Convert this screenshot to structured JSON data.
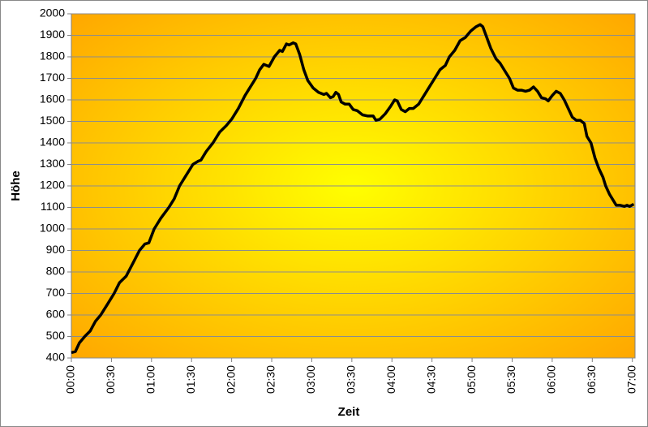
{
  "chart_data": {
    "type": "line",
    "x_label": "Zeit",
    "y_label": "Höhe",
    "x": [
      0,
      3,
      6,
      10,
      14,
      18,
      22,
      27,
      32,
      36,
      41,
      46,
      51,
      55,
      58,
      62,
      67,
      73,
      77,
      81,
      86,
      91,
      95,
      97,
      101,
      106,
      111,
      116,
      120,
      125,
      130,
      134,
      138,
      141,
      144,
      148,
      152,
      156,
      158,
      161,
      163,
      166,
      168,
      171,
      174,
      177,
      181,
      185,
      189,
      191,
      194,
      196,
      198,
      200,
      202,
      205,
      208,
      211,
      214,
      218,
      222,
      226,
      228,
      231,
      235,
      239,
      242,
      244,
      247,
      250,
      253,
      256,
      260,
      264,
      268,
      272,
      276,
      280,
      283,
      287,
      291,
      295,
      299,
      303,
      306,
      308,
      311,
      314,
      318,
      321,
      325,
      328,
      331,
      334,
      337,
      340,
      343,
      346,
      349,
      352,
      355,
      357,
      360,
      363,
      366,
      369,
      372,
      375,
      378,
      381,
      384,
      386,
      389,
      392,
      395,
      398,
      400,
      403,
      406,
      408,
      411,
      414,
      416,
      418,
      421
    ],
    "series": [
      {
        "name": "Höhe",
        "color": "#000000",
        "values": [
          425,
          430,
          470,
          500,
          525,
          570,
          600,
          650,
          700,
          750,
          780,
          840,
          900,
          930,
          935,
          1000,
          1050,
          1100,
          1140,
          1200,
          1250,
          1300,
          1315,
          1320,
          1360,
          1400,
          1450,
          1480,
          1510,
          1560,
          1620,
          1660,
          1700,
          1740,
          1765,
          1755,
          1800,
          1830,
          1825,
          1860,
          1855,
          1865,
          1860,
          1810,
          1740,
          1690,
          1655,
          1635,
          1625,
          1630,
          1610,
          1615,
          1635,
          1625,
          1590,
          1580,
          1580,
          1555,
          1550,
          1530,
          1525,
          1525,
          1505,
          1510,
          1535,
          1570,
          1600,
          1595,
          1555,
          1545,
          1560,
          1560,
          1580,
          1620,
          1660,
          1700,
          1740,
          1760,
          1800,
          1830,
          1875,
          1890,
          1920,
          1940,
          1950,
          1940,
          1890,
          1840,
          1790,
          1770,
          1730,
          1700,
          1655,
          1645,
          1645,
          1640,
          1645,
          1660,
          1640,
          1610,
          1605,
          1595,
          1620,
          1640,
          1630,
          1600,
          1560,
          1520,
          1505,
          1505,
          1490,
          1430,
          1400,
          1330,
          1280,
          1240,
          1200,
          1160,
          1130,
          1110,
          1110,
          1105,
          1110,
          1105,
          1115
        ]
      }
    ],
    "xlim": [
      0,
      422
    ],
    "xticks": [
      {
        "value": 0,
        "label": "00:00"
      },
      {
        "value": 30,
        "label": "00:30"
      },
      {
        "value": 60,
        "label": "01:00"
      },
      {
        "value": 90,
        "label": "01:30"
      },
      {
        "value": 120,
        "label": "02:00"
      },
      {
        "value": 150,
        "label": "02:30"
      },
      {
        "value": 180,
        "label": "03:00"
      },
      {
        "value": 210,
        "label": "03:30"
      },
      {
        "value": 240,
        "label": "04:00"
      },
      {
        "value": 270,
        "label": "04:30"
      },
      {
        "value": 300,
        "label": "05:00"
      },
      {
        "value": 330,
        "label": "05:30"
      },
      {
        "value": 360,
        "label": "06:00"
      },
      {
        "value": 390,
        "label": "06:30"
      },
      {
        "value": 420,
        "label": "07:00"
      }
    ],
    "ylim": [
      400,
      2000
    ],
    "yticks": [
      400,
      500,
      600,
      700,
      800,
      900,
      1000,
      1100,
      1200,
      1300,
      1400,
      1500,
      1600,
      1700,
      1800,
      1900,
      2000
    ],
    "grid": true
  }
}
